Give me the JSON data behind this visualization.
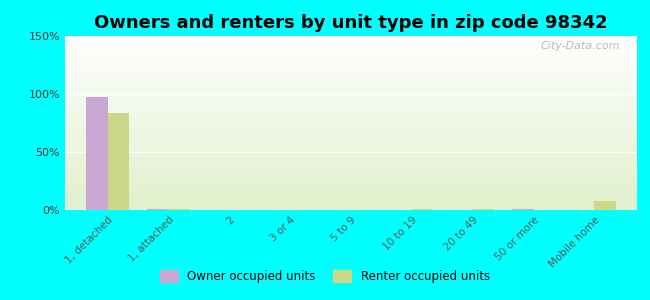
{
  "title": "Owners and renters by unit type in zip code 98342",
  "categories": [
    "1, detached",
    "1, attached",
    "2",
    "3 or 4",
    "5 to 9",
    "10 to 19",
    "20 to 49",
    "50 or more",
    "Mobile home"
  ],
  "owner_values": [
    97,
    0.5,
    0,
    0,
    0,
    0,
    0,
    1,
    0
  ],
  "renter_values": [
    84,
    0.5,
    0,
    0,
    0,
    0.5,
    1,
    0,
    8
  ],
  "owner_color": "#c9a8d4",
  "renter_color": "#ccd98a",
  "background_color": "#00ffff",
  "plot_bg_color": "#e8f0d8",
  "ylim": [
    0,
    150
  ],
  "yticks": [
    0,
    50,
    100,
    150
  ],
  "ytick_labels": [
    "0%",
    "50%",
    "100%",
    "150%"
  ],
  "title_fontsize": 13,
  "watermark": "City-Data.com",
  "bar_width": 0.35,
  "legend_labels": [
    "Owner occupied units",
    "Renter occupied units"
  ]
}
